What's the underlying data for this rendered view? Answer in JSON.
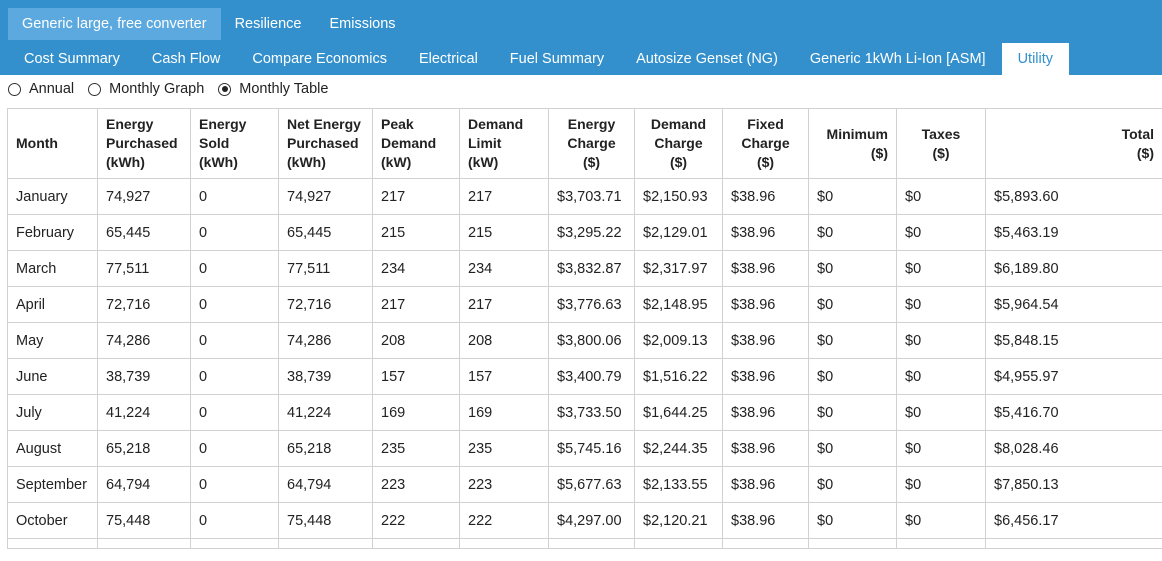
{
  "tabs_primary": [
    "Generic large, free converter",
    "Resilience",
    "Emissions"
  ],
  "tabs_secondary": [
    "Cost Summary",
    "Cash Flow",
    "Compare Economics",
    "Electrical",
    "Fuel Summary",
    "Autosize Genset (NG)",
    "Generic 1kWh Li-Ion [ASM]",
    "Utility"
  ],
  "view_options": [
    "Annual",
    "Monthly Graph",
    "Monthly Table"
  ],
  "table": {
    "columns": [
      [
        "Month"
      ],
      [
        "Energy",
        "Purchased",
        "(kWh)"
      ],
      [
        "Energy",
        "Sold",
        "(kWh)"
      ],
      [
        "Net Energy",
        "Purchased",
        "(kWh)"
      ],
      [
        "Peak",
        "Demand",
        "(kW)"
      ],
      [
        "Demand",
        "Limit",
        "(kW)"
      ],
      [
        "Energy",
        "Charge",
        "($)"
      ],
      [
        "Demand",
        "Charge",
        "($)"
      ],
      [
        "Fixed",
        "Charge",
        "($)"
      ],
      [
        "Minimum",
        "($)"
      ],
      [
        "Taxes",
        "($)"
      ],
      [
        "Total",
        "($)"
      ]
    ],
    "rows": [
      [
        "January",
        "74,927",
        "0",
        "74,927",
        "217",
        "217",
        "$3,703.71",
        "$2,150.93",
        "$38.96",
        "$0",
        "$0",
        "$5,893.60"
      ],
      [
        "February",
        "65,445",
        "0",
        "65,445",
        "215",
        "215",
        "$3,295.22",
        "$2,129.01",
        "$38.96",
        "$0",
        "$0",
        "$5,463.19"
      ],
      [
        "March",
        "77,511",
        "0",
        "77,511",
        "234",
        "234",
        "$3,832.87",
        "$2,317.97",
        "$38.96",
        "$0",
        "$0",
        "$6,189.80"
      ],
      [
        "April",
        "72,716",
        "0",
        "72,716",
        "217",
        "217",
        "$3,776.63",
        "$2,148.95",
        "$38.96",
        "$0",
        "$0",
        "$5,964.54"
      ],
      [
        "May",
        "74,286",
        "0",
        "74,286",
        "208",
        "208",
        "$3,800.06",
        "$2,009.13",
        "$38.96",
        "$0",
        "$0",
        "$5,848.15"
      ],
      [
        "June",
        "38,739",
        "0",
        "38,739",
        "157",
        "157",
        "$3,400.79",
        "$1,516.22",
        "$38.96",
        "$0",
        "$0",
        "$4,955.97"
      ],
      [
        "July",
        "41,224",
        "0",
        "41,224",
        "169",
        "169",
        "$3,733.50",
        "$1,644.25",
        "$38.96",
        "$0",
        "$0",
        "$5,416.70"
      ],
      [
        "August",
        "65,218",
        "0",
        "65,218",
        "235",
        "235",
        "$5,745.16",
        "$2,244.35",
        "$38.96",
        "$0",
        "$0",
        "$8,028.46"
      ],
      [
        "September",
        "64,794",
        "0",
        "64,794",
        "223",
        "223",
        "$5,677.63",
        "$2,133.55",
        "$38.96",
        "$0",
        "$0",
        "$7,850.13"
      ],
      [
        "October",
        "75,448",
        "0",
        "75,448",
        "222",
        "222",
        "$4,297.00",
        "$2,120.21",
        "$38.96",
        "$0",
        "$0",
        "$6,456.17"
      ]
    ]
  }
}
